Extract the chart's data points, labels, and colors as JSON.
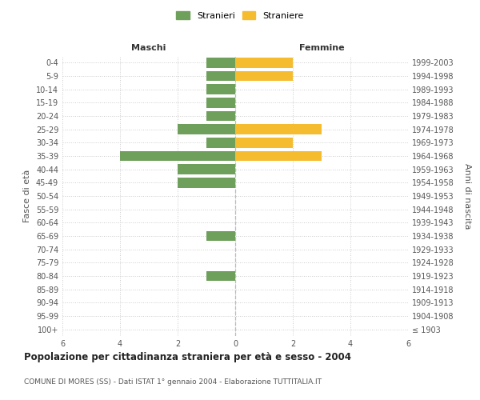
{
  "age_groups": [
    "100+",
    "95-99",
    "90-94",
    "85-89",
    "80-84",
    "75-79",
    "70-74",
    "65-69",
    "60-64",
    "55-59",
    "50-54",
    "45-49",
    "40-44",
    "35-39",
    "30-34",
    "25-29",
    "20-24",
    "15-19",
    "10-14",
    "5-9",
    "0-4"
  ],
  "anni_nascita": [
    "≤ 1903",
    "1904-1908",
    "1909-1913",
    "1914-1918",
    "1919-1923",
    "1924-1928",
    "1929-1933",
    "1934-1938",
    "1939-1943",
    "1944-1948",
    "1949-1953",
    "1954-1958",
    "1959-1963",
    "1964-1968",
    "1969-1973",
    "1974-1978",
    "1979-1983",
    "1984-1988",
    "1989-1993",
    "1994-1998",
    "1999-2003"
  ],
  "maschi": [
    0,
    0,
    0,
    0,
    1,
    0,
    0,
    1,
    0,
    0,
    0,
    2,
    2,
    4,
    1,
    2,
    1,
    1,
    1,
    1,
    1
  ],
  "femmine": [
    0,
    0,
    0,
    0,
    0,
    0,
    0,
    0,
    0,
    0,
    0,
    0,
    0,
    3,
    2,
    3,
    0,
    0,
    0,
    2,
    2
  ],
  "color_maschi": "#6e9f5b",
  "color_femmine": "#f5bc2f",
  "title": "Popolazione per cittadinanza straniera per età e sesso - 2004",
  "subtitle": "COMUNE DI MORES (SS) - Dati ISTAT 1° gennaio 2004 - Elaborazione TUTTITALIA.IT",
  "label_maschi": "Maschi",
  "label_femmine": "Femmine",
  "ylabel_left": "Fasce di età",
  "ylabel_right": "Anni di nascita",
  "legend_stranieri": "Stranieri",
  "legend_straniere": "Straniere",
  "xlim": 6,
  "background_color": "#ffffff",
  "grid_color": "#cccccc",
  "bar_height": 0.75
}
